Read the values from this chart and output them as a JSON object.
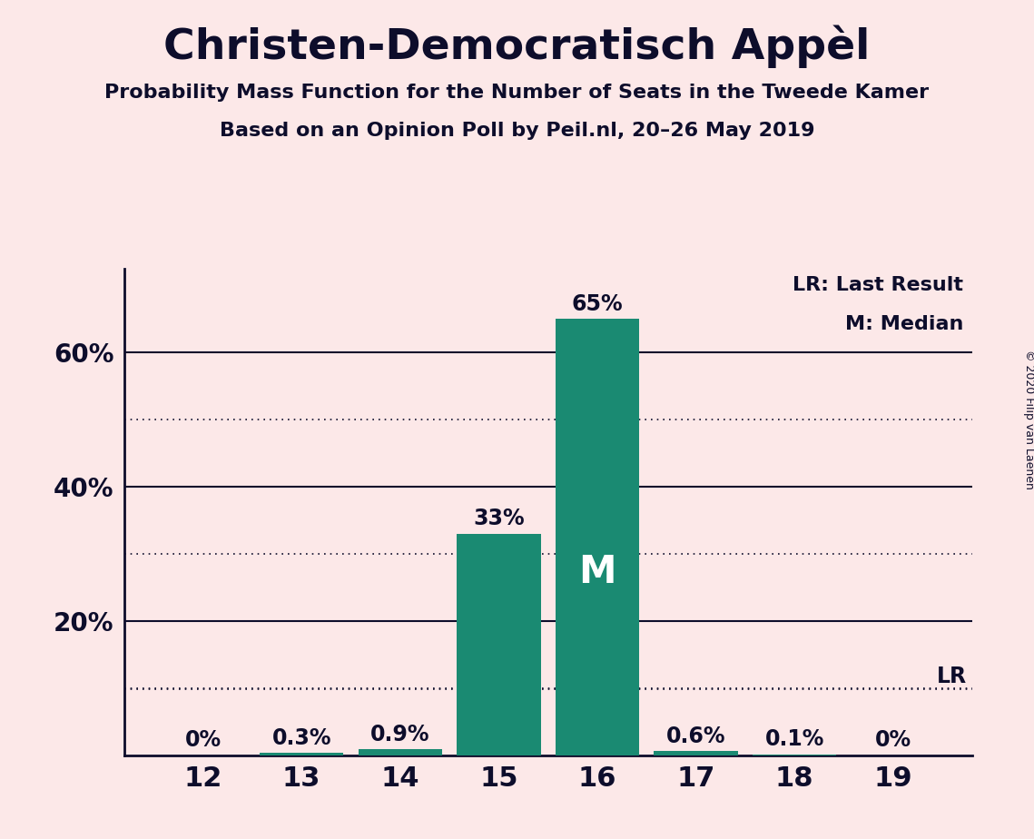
{
  "title": "Christen-Democratisch Appèl",
  "subtitle1": "Probability Mass Function for the Number of Seats in the Tweede Kamer",
  "subtitle2": "Based on an Opinion Poll by Peil.nl, 20–26 May 2019",
  "copyright": "© 2020 Filip van Laenen",
  "seats": [
    12,
    13,
    14,
    15,
    16,
    17,
    18,
    19
  ],
  "probabilities": [
    0.0,
    0.003,
    0.009,
    0.33,
    0.65,
    0.006,
    0.001,
    0.0
  ],
  "bar_labels": [
    "0%",
    "0.3%",
    "0.9%",
    "33%",
    "65%",
    "0.6%",
    "0.1%",
    "0%"
  ],
  "bar_color": "#1a8a72",
  "background_color": "#fce8e8",
  "text_color": "#0d0d2b",
  "median_seat": 16,
  "last_result_value": 0.098,
  "solid_lines": [
    0.2,
    0.4,
    0.6
  ],
  "dotted_lines": [
    0.1,
    0.3,
    0.5
  ],
  "yticks": [
    0.2,
    0.4,
    0.6
  ],
  "ytick_labels": [
    "20%",
    "40%",
    "60%"
  ],
  "legend_lr": "LR: Last Result",
  "legend_m": "M: Median",
  "ylim": [
    0,
    0.725
  ]
}
